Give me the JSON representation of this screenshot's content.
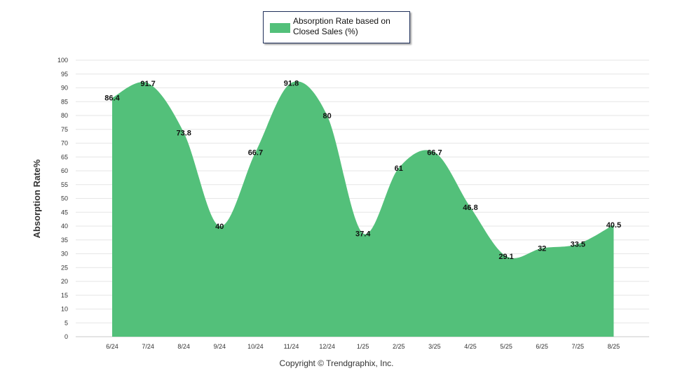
{
  "chart_data": {
    "type": "area",
    "categories": [
      "6/24",
      "7/24",
      "8/24",
      "9/24",
      "10/24",
      "11/24",
      "12/24",
      "1/25",
      "2/25",
      "3/25",
      "4/25",
      "5/25",
      "6/25",
      "7/25",
      "8/25"
    ],
    "series": [
      {
        "name": "Absorption Rate based on Closed Sales (%)",
        "values": [
          86.4,
          91.7,
          73.8,
          40,
          66.7,
          91.8,
          80,
          37.4,
          61,
          66.7,
          46.8,
          29.1,
          32,
          33.5,
          40.5
        ],
        "color": "#53c07a"
      }
    ],
    "data_labels": [
      "86.4",
      "91.7",
      "73.8",
      "40",
      "66.7",
      "91.8",
      "80",
      "37.4",
      "61",
      "66.7",
      "46.8",
      "29.1",
      "32",
      "33.5",
      "40.5"
    ],
    "ylabel": "Absorption Rate%",
    "xlabel": "",
    "ylim": [
      0,
      100
    ],
    "yticks": [
      "0",
      "5",
      "10",
      "15",
      "20",
      "25",
      "30",
      "35",
      "40",
      "45",
      "50",
      "55",
      "60",
      "65",
      "70",
      "75",
      "80",
      "85",
      "90",
      "95",
      "100"
    ],
    "grid": true,
    "legend_position": "top-center"
  },
  "footer": {
    "copyright": "Copyright © Trendgraphix, Inc."
  }
}
